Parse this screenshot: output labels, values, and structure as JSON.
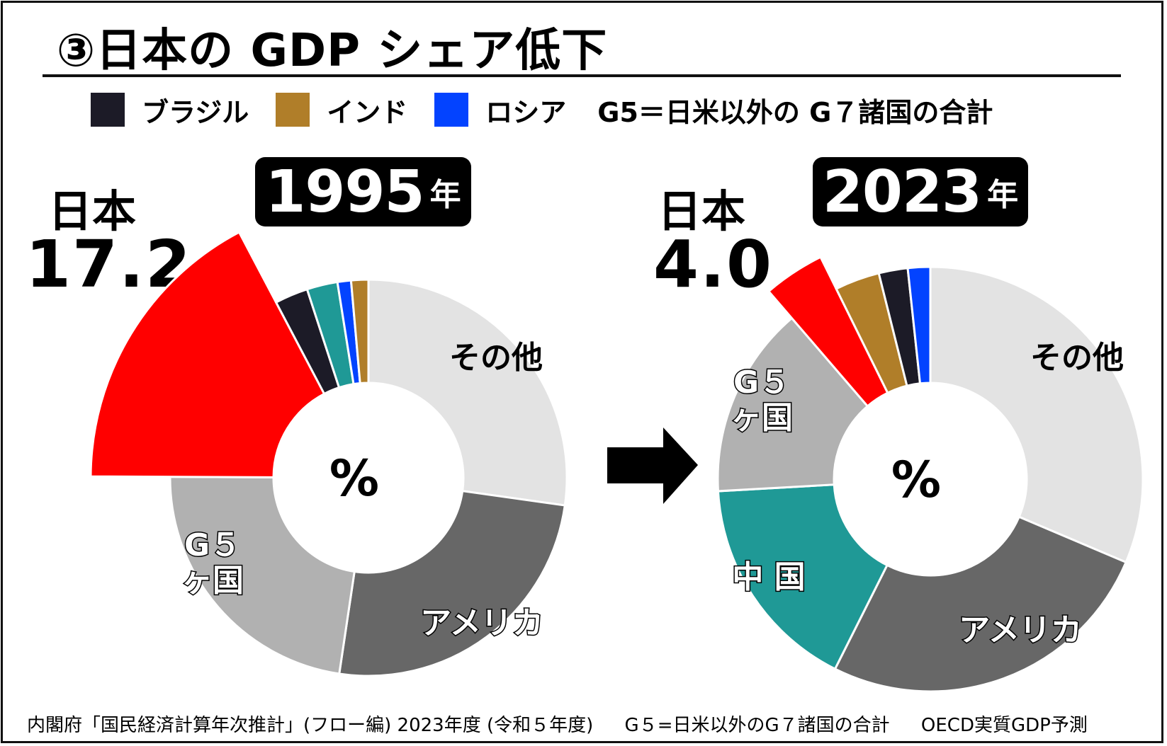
{
  "title": "③日本の GDP シェア低下",
  "legend": {
    "items": [
      {
        "label": "ブラジル",
        "color": "#1c1b27"
      },
      {
        "label": "インド",
        "color": "#b07e29"
      },
      {
        "label": "ロシア",
        "color": "#0343ff"
      }
    ],
    "note": "G5＝日米以外の G７諸国の合計"
  },
  "panels": [
    {
      "year": "1995",
      "year_suffix": "年",
      "japan_label": "日本",
      "japan_value": "17.2"
    },
    {
      "year": "2023",
      "year_suffix": "年",
      "japan_label": "日本",
      "japan_value": "4.0"
    }
  ],
  "footer": {
    "source": "内閣府「国民経済計算年次推計」(フロー編) 2023年度 (令和５年度)",
    "g5_note": "G５=日米以外のG７諸国の合計",
    "forecast_note": "OECD実質GDP予測"
  },
  "chart_data": [
    {
      "type": "pie",
      "title": "1995年",
      "center_label": "%",
      "slices": [
        {
          "name": "その他",
          "value": 27.2,
          "color": "#e3e3e3",
          "label": "その他"
        },
        {
          "name": "アメリカ",
          "value": 25.1,
          "color": "#676767",
          "label": "アメリカ"
        },
        {
          "name": "G5ヶ国",
          "value": 22.7,
          "color": "#b1b1b1",
          "label": "G５\nヶ国"
        },
        {
          "name": "日本",
          "value": 17.2,
          "color": "#ff0000",
          "label": "",
          "exploded": true
        },
        {
          "name": "ブラジル",
          "value": 2.7,
          "color": "#1c1b27",
          "label": ""
        },
        {
          "name": "中国",
          "value": 2.5,
          "color": "#1f9996",
          "label": ""
        },
        {
          "name": "ロシア",
          "value": 1.1,
          "color": "#0343ff",
          "label": ""
        },
        {
          "name": "インド",
          "value": 1.4,
          "color": "#b07e29",
          "label": ""
        }
      ]
    },
    {
      "type": "pie",
      "title": "2023年",
      "center_label": "%",
      "slices": [
        {
          "name": "その他",
          "value": 31.4,
          "color": "#e3e3e3",
          "label": "その他"
        },
        {
          "name": "アメリカ",
          "value": 26.0,
          "color": "#676767",
          "label": "アメリカ"
        },
        {
          "name": "中国",
          "value": 16.7,
          "color": "#1f9996",
          "label": "中 国"
        },
        {
          "name": "G5ヶ国",
          "value": 14.6,
          "color": "#b1b1b1",
          "label": "G５\nヶ国"
        },
        {
          "name": "日本",
          "value": 4.0,
          "color": "#ff0000",
          "label": "",
          "exploded": true
        },
        {
          "name": "インド",
          "value": 3.4,
          "color": "#b07e29",
          "label": ""
        },
        {
          "name": "ブラジル",
          "value": 2.2,
          "color": "#1c1b27",
          "label": ""
        },
        {
          "name": "ロシア",
          "value": 1.7,
          "color": "#0343ff",
          "label": ""
        }
      ]
    }
  ]
}
